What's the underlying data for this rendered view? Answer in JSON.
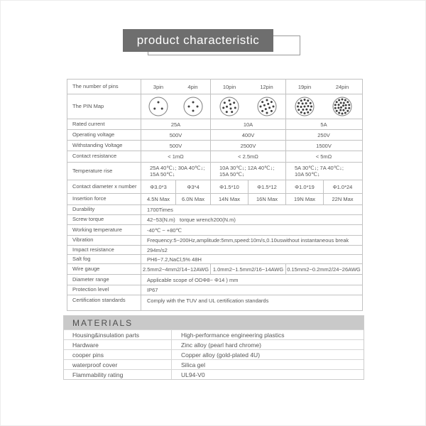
{
  "colors": {
    "header_fill": "#6e6e6e",
    "header_outline": "#9a9a9a",
    "table_border": "#c2c2c2",
    "materials_bar": "#c9c9c9",
    "text": "#555555"
  },
  "header": {
    "title": "product characteristic"
  },
  "spec_table": {
    "rows": [
      {
        "type": "six_plain",
        "label": "The number of pins",
        "cells": [
          "3pin",
          "4pin",
          "10pin",
          "12pin",
          "19pin",
          "24pin"
        ]
      },
      {
        "type": "pinmap",
        "label": "The PIN Map",
        "pin_counts": [
          3,
          4,
          10,
          12,
          19,
          24
        ]
      },
      {
        "type": "three",
        "label": "Rated current",
        "cells": [
          "25A",
          "10A",
          "5A"
        ]
      },
      {
        "type": "three",
        "label": "Operating voltage",
        "cells": [
          "500V",
          "400V",
          "250V"
        ]
      },
      {
        "type": "three",
        "label": "Withstanding Voltage",
        "cells": [
          "500V",
          "2500V",
          "1500V"
        ]
      },
      {
        "type": "three",
        "label": "Contact resistance",
        "cells": [
          "< 1mΩ",
          "< 2.5mΩ",
          "< 5mΩ"
        ]
      },
      {
        "type": "three",
        "label": "Temperature rise",
        "cells": [
          "25A 40℃↓; 30A 40℃↓;\n15A 50℃↓",
          "10A 30℃↓; 12A 40℃↓;\n15A 50℃↓",
          "5A 30℃↓; 7A 40℃↓;\n10A 50℃↓"
        ]
      },
      {
        "type": "six",
        "label": "Contact diameter x number",
        "cells": [
          "Φ3.0*3",
          "Φ3*4",
          "Φ1.5*10",
          "Φ1.5*12",
          "Φ1.0*19",
          "Φ1.0*24"
        ]
      },
      {
        "type": "six",
        "label": "Insertion force",
        "cells": [
          "4.5N Max",
          "6.0N Max",
          "14N Max",
          "16N Max",
          "19N Max",
          "22N Max"
        ]
      },
      {
        "type": "full",
        "label": "Durability",
        "cells": [
          "1700Times"
        ]
      },
      {
        "type": "full",
        "label": "Screw torque",
        "cells": [
          "42~53(N.m)   torque wrench200(N.m)"
        ]
      },
      {
        "type": "full",
        "label": "Working temperature",
        "cells": [
          "-40℃ ~ +80℃"
        ]
      },
      {
        "type": "full",
        "label": "Vibration",
        "cells": [
          "Frequency:5~200Hz,amplitude:5mm,speed:10m/s,0.10uswithout instantaneous break"
        ]
      },
      {
        "type": "full",
        "label": "Impact resistance",
        "cells": [
          "294m/s2"
        ]
      },
      {
        "type": "full",
        "label": "Salt fog",
        "cells": [
          "PH6~7.2,NaCl,5% 48H"
        ]
      },
      {
        "type": "three",
        "label": "Wire gauge",
        "cells": [
          "2.5mm2~4mm2/14~12AWG",
          "1.0mm2~1.5mm2/16~14AWG",
          "0.15mm2~0.2mm2/24~26AWG"
        ]
      },
      {
        "type": "full",
        "label": "Diameter range",
        "cells": [
          "Applicable scope of ODΦ8~ Φ14 ) mm"
        ]
      },
      {
        "type": "full",
        "label": "Protection level",
        "cells": [
          "IP67"
        ]
      },
      {
        "type": "full",
        "label": "Certification standards",
        "cells": [
          "Comply with the TUV and UL certification standards"
        ]
      }
    ]
  },
  "materials": {
    "title": "MATERIALS",
    "rows": [
      {
        "label": "Housing&insulation parts",
        "value": "High-performance engineering plastics"
      },
      {
        "label": "Hardware",
        "value": "Zinc alloy (pearl hard chrome)"
      },
      {
        "label": "cooper pins",
        "value": "Copper alloy (gold-plated 4U)"
      },
      {
        "label": "waterproof cover",
        "value": "Silica gel"
      },
      {
        "label": "Flammability rating",
        "value": "UL94-V0"
      }
    ]
  }
}
